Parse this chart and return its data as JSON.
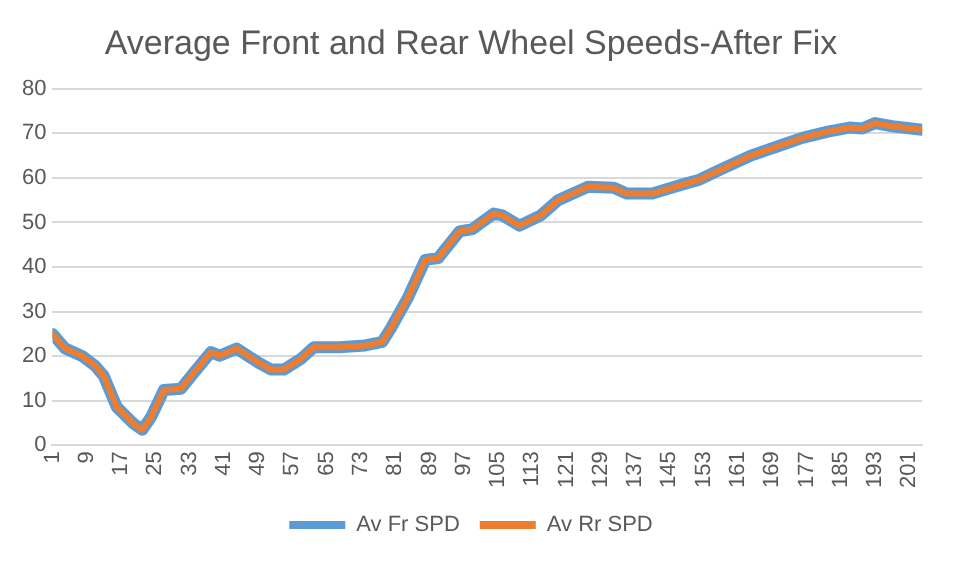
{
  "chart_data": {
    "type": "line",
    "title": "Average Front and Rear Wheel Speeds-After Fix",
    "x": [
      1,
      4,
      8,
      11,
      13,
      16,
      20,
      22,
      24,
      27,
      31,
      34,
      38,
      40,
      44,
      49,
      52,
      55,
      59,
      62,
      68,
      74,
      78,
      80,
      84,
      88,
      91,
      96,
      99,
      104,
      106,
      110,
      115,
      119,
      126,
      132,
      135,
      141,
      149,
      152,
      157,
      164,
      170,
      176,
      182,
      187,
      190,
      193,
      197,
      204
    ],
    "series": [
      {
        "name": "Av Fr SPD",
        "color": "#5b9bd5",
        "values": [
          25,
          21.7,
          20,
          17.8,
          15.5,
          8.6,
          4.8,
          3.5,
          6.3,
          12.4,
          12.7,
          16.3,
          20.9,
          20.1,
          21.7,
          18.6,
          17,
          17,
          19.4,
          22,
          22,
          22.4,
          23.2,
          26.3,
          33.2,
          41.6,
          42,
          48,
          48.5,
          52,
          51.6,
          49.3,
          51.6,
          55,
          58,
          57.8,
          56.5,
          56.5,
          58.8,
          59.6,
          61.9,
          65,
          67,
          69,
          70.4,
          71.3,
          71.1,
          72.3,
          71.6,
          70.8
        ]
      },
      {
        "name": "Av Rr SPD",
        "color": "#ed7d31",
        "values": [
          25,
          21.7,
          20,
          17.8,
          15.5,
          8.6,
          4.8,
          3.5,
          6.3,
          12.4,
          12.7,
          16.3,
          20.9,
          20.1,
          21.7,
          18.6,
          17,
          17,
          19.4,
          22,
          22,
          22.4,
          23.2,
          26.3,
          33.2,
          41.6,
          42,
          48,
          48.5,
          52,
          51.6,
          49.3,
          51.6,
          55,
          58,
          57.8,
          56.5,
          56.5,
          58.8,
          59.6,
          61.9,
          65,
          67,
          69,
          70.4,
          71.3,
          71.1,
          72.3,
          71.6,
          70.8
        ]
      }
    ],
    "xlim": [
      1,
      204
    ],
    "xticks": [
      1,
      9,
      17,
      25,
      33,
      41,
      49,
      57,
      65,
      73,
      81,
      89,
      97,
      105,
      113,
      121,
      129,
      137,
      145,
      153,
      161,
      169,
      177,
      185,
      193,
      201
    ],
    "ylim": [
      0,
      80
    ],
    "yticks": [
      0,
      10,
      20,
      30,
      40,
      50,
      60,
      70,
      80
    ],
    "grid": "y",
    "legend": "bottom"
  }
}
